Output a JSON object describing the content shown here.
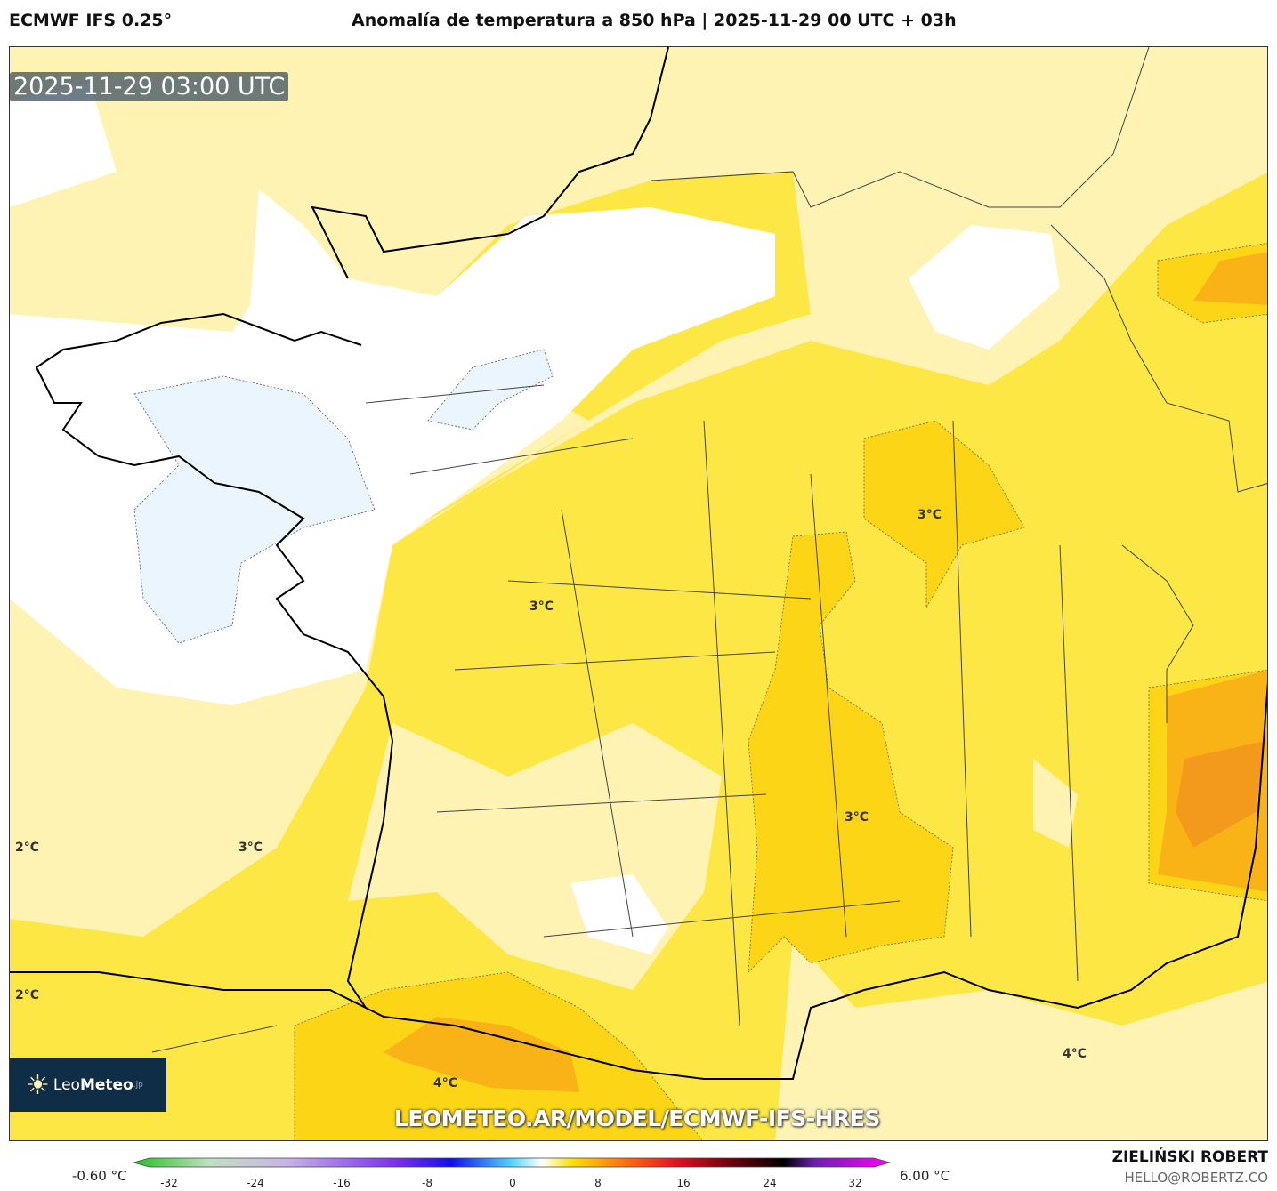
{
  "header": {
    "model": "ECMWF IFS 0.25°",
    "title": "Anomalía de temperatura a 850 hPa | 2025-11-29 00 UTC + 03h"
  },
  "map": {
    "timestamp": "2025-11-29 03:00 UTC",
    "contour_labels": [
      "3°C",
      "3°C",
      "3°C",
      "2°C",
      "3°C",
      "2°C",
      "4°C",
      "4°C"
    ],
    "url": "LEOMETEO.AR/MODEL/ECMWF-IFS-HRES",
    "logo": {
      "light": "Leo",
      "bold": "Meteo",
      "suffix": ".jp"
    },
    "colors": {
      "white": "#ffffff",
      "light_blue": "#eaf5fd",
      "pale_yellow": "#fff3b3",
      "yellow": "#fde745",
      "deep_yellow": "#fcd516",
      "orange": "#f9b317",
      "dark_orange": "#f39a1c"
    }
  },
  "colorbar": {
    "min_label": "-0.60 °C",
    "max_label": "6.00 °C",
    "ticks": [
      "-32",
      "-24",
      "-16",
      "-8",
      "0",
      "8",
      "16",
      "24",
      "32"
    ]
  },
  "credits": {
    "author": "ZIELIŃSKI ROBERT",
    "email": "HELLO@ROBERTZ.CO"
  }
}
